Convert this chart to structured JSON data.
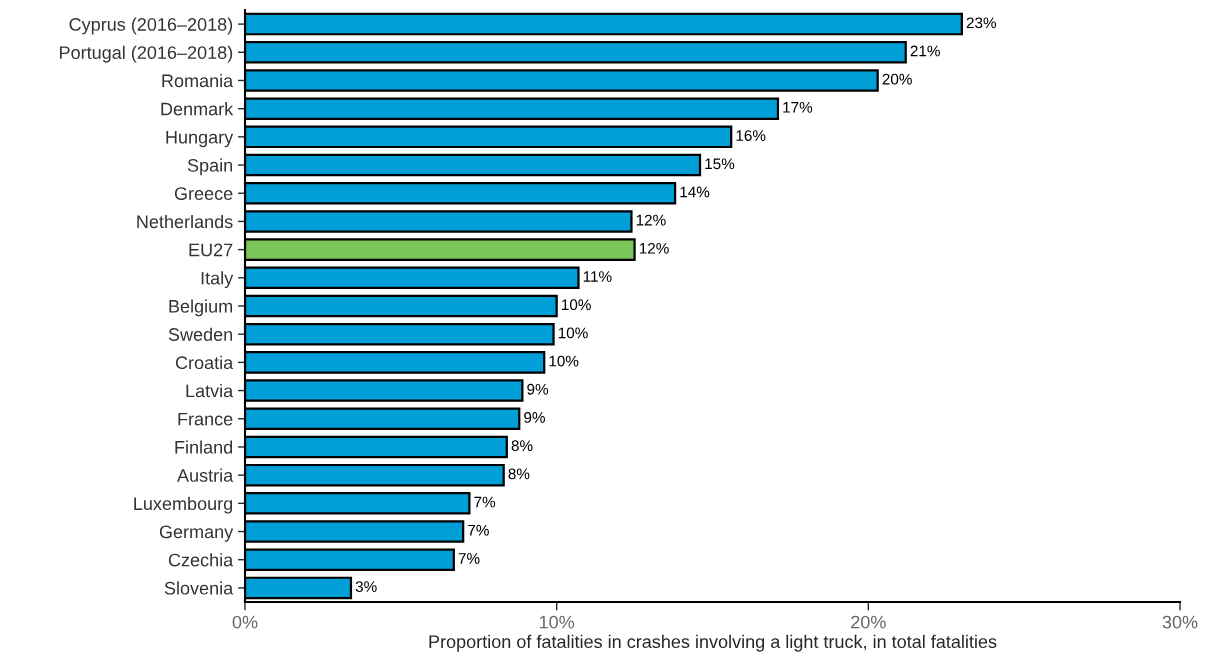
{
  "chart_data": {
    "type": "bar",
    "orientation": "horizontal",
    "xlabel": "Proportion of fatalities in crashes involving a light truck, in total fatalities",
    "categories": [
      "Cyprus (2016–2018)",
      "Portugal (2016–2018)",
      "Romania",
      "Denmark",
      "Hungary",
      "Spain",
      "Greece",
      "Netherlands",
      "EU27",
      "Italy",
      "Belgium",
      "Sweden",
      "Croatia",
      "Latvia",
      "France",
      "Finland",
      "Austria",
      "Luxembourg",
      "Germany",
      "Czechia",
      "Slovenia"
    ],
    "values": [
      23.0,
      21.2,
      20.3,
      17.1,
      15.6,
      14.6,
      13.8,
      12.4,
      12.5,
      10.7,
      10.0,
      9.9,
      9.6,
      8.9,
      8.8,
      8.4,
      8.3,
      7.2,
      7.0,
      6.7,
      3.4
    ],
    "colors": [
      "#009fd8",
      "#009fd8",
      "#009fd8",
      "#009fd8",
      "#009fd8",
      "#009fd8",
      "#009fd8",
      "#009fd8",
      "#7ac65a",
      "#009fd8",
      "#009fd8",
      "#009fd8",
      "#009fd8",
      "#009fd8",
      "#009fd8",
      "#009fd8",
      "#009fd8",
      "#009fd8",
      "#009fd8",
      "#009fd8",
      "#009fd8"
    ],
    "value_labels": [
      "23%",
      "21%",
      "20%",
      "17%",
      "16%",
      "15%",
      "14%",
      "12%",
      "12%",
      "11%",
      "10%",
      "10%",
      "10%",
      "9%",
      "9%",
      "8%",
      "8%",
      "7%",
      "7%",
      "7%",
      "3%"
    ],
    "xlim": [
      0,
      30
    ],
    "xticks": [
      {
        "value": 0,
        "label": "0%"
      },
      {
        "value": 10,
        "label": "10%"
      },
      {
        "value": 20,
        "label": "20%"
      },
      {
        "value": 30,
        "label": "30%"
      }
    ],
    "grid": false
  }
}
